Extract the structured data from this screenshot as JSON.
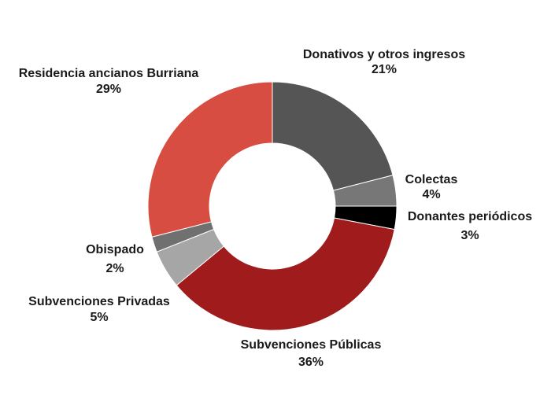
{
  "chart_data": {
    "type": "pie",
    "variant": "donut",
    "title": "",
    "legend": "none",
    "slices": [
      {
        "label": "Donativos y otros ingresos",
        "value": 21,
        "value_label": "21%",
        "color": "#555555"
      },
      {
        "label": "Colectas",
        "value": 4,
        "value_label": "4%",
        "color": "#777777"
      },
      {
        "label": "Donantes periódicos",
        "value": 3,
        "value_label": "3%",
        "color": "#000000"
      },
      {
        "label": "Subvenciones Públicas",
        "value": 36,
        "value_label": "36%",
        "color": "#a01c1c"
      },
      {
        "label": "Subvenciones Privadas",
        "value": 5,
        "value_label": "5%",
        "color": "#a6a6a6"
      },
      {
        "label": "Obispado",
        "value": 2,
        "value_label": "2%",
        "color": "#707070"
      },
      {
        "label": "Residencia ancianos Burriana",
        "value": 29,
        "value_label": "29%",
        "color": "#d74d42"
      }
    ]
  }
}
